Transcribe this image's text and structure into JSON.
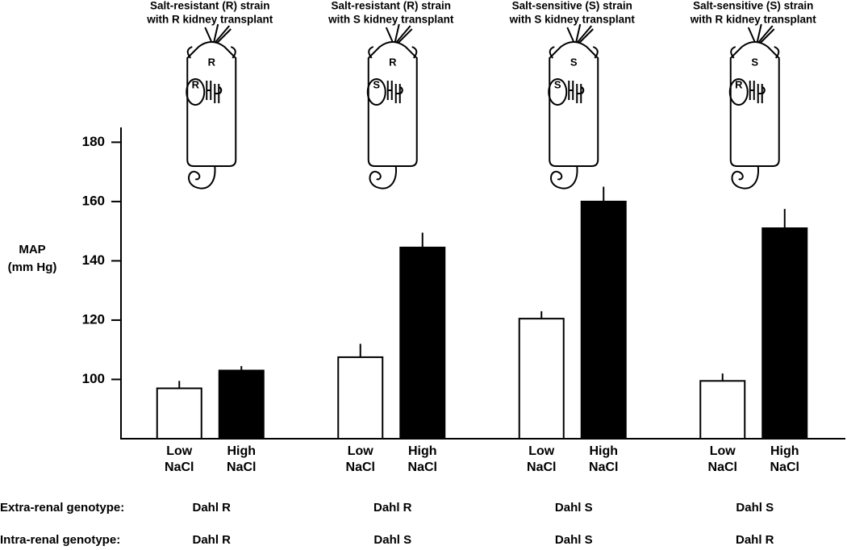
{
  "chart_data": {
    "type": "bar",
    "group_titles": [
      [
        "Salt-resistant (R) strain",
        "with R kidney transplant"
      ],
      [
        "Salt-resistant (R) strain",
        "with S kidney transplant"
      ],
      [
        "Salt-sensitive (S) strain",
        "with S kidney transplant"
      ],
      [
        "Salt-sensitive (S) strain",
        "with R kidney transplant"
      ]
    ],
    "mouse_labels": [
      {
        "body": "R",
        "kidney": "R"
      },
      {
        "body": "R",
        "kidney": "S"
      },
      {
        "body": "S",
        "kidney": "S"
      },
      {
        "body": "S",
        "kidney": "R"
      }
    ],
    "y_label": [
      "MAP",
      "(mm Hg)"
    ],
    "series": [
      {
        "name": "Low NaCl",
        "color": "#ffffff",
        "values": [
          97,
          107.5,
          120.5,
          99.5
        ],
        "errors": [
          2.5,
          4.5,
          2.5,
          2.5
        ]
      },
      {
        "name": "High NaCl",
        "color": "#000000",
        "values": [
          103,
          144.5,
          160,
          151
        ],
        "errors": [
          1.5,
          5,
          5,
          6.5
        ]
      }
    ],
    "ylim": [
      80,
      185
    ],
    "yticks": [
      100,
      120,
      140,
      160,
      180
    ],
    "rows": [
      {
        "label": "Extra-renal genotype:",
        "values": [
          "Dahl R",
          "Dahl R",
          "Dahl S",
          "Dahl S"
        ]
      },
      {
        "label": "Intra-renal genotype:",
        "values": [
          "Dahl R",
          "Dahl S",
          "Dahl S",
          "Dahl R"
        ]
      }
    ]
  }
}
